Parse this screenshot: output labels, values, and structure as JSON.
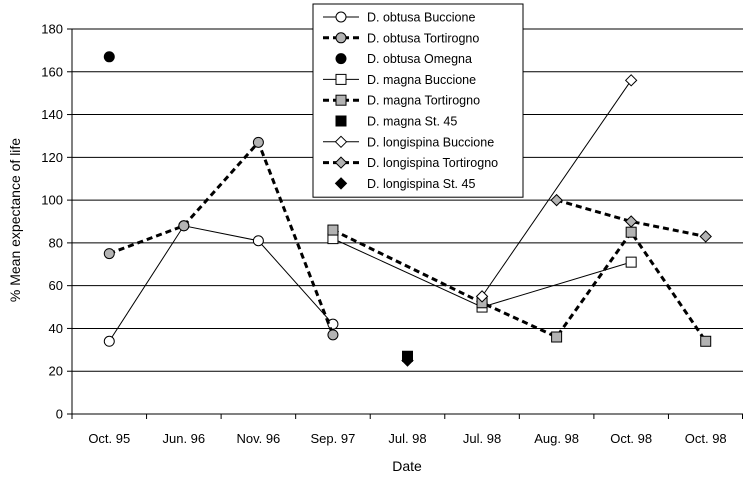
{
  "chart_data": {
    "type": "line",
    "title": "",
    "xlabel": "Date",
    "ylabel": "% Mean expectance of life",
    "ylim": [
      0,
      180
    ],
    "yticks": [
      0,
      20,
      40,
      60,
      80,
      100,
      120,
      140,
      160,
      180
    ],
    "grid": true,
    "legend_position": "top-center",
    "categories": [
      "Oct. 95",
      "Jun. 96",
      "Nov. 96",
      "Sep. 97",
      "Jul. 98",
      "Jul. 98",
      "Aug. 98",
      "Oct. 98",
      "Oct. 98"
    ],
    "series": [
      {
        "name": "D. obtusa Buccione",
        "line": "solid",
        "marker": "circle",
        "fill": "#ffffff",
        "points": [
          [
            0,
            34
          ],
          [
            1,
            88
          ],
          [
            2,
            81
          ],
          [
            3,
            42
          ]
        ]
      },
      {
        "name": "D. obtusa Tortirogno",
        "line": "dashed",
        "marker": "circle",
        "fill": "#b3b3b3",
        "points": [
          [
            0,
            75
          ],
          [
            1,
            88
          ],
          [
            2,
            127
          ],
          [
            3,
            37
          ]
        ]
      },
      {
        "name": "D. obtusa Omegna",
        "line": "none",
        "marker": "circle",
        "fill": "#000000",
        "points": [
          [
            0,
            167
          ]
        ]
      },
      {
        "name": "D. magna Buccione",
        "line": "solid",
        "marker": "square",
        "fill": "#ffffff",
        "points": [
          [
            3,
            82
          ],
          [
            5,
            50
          ],
          [
            7,
            71
          ]
        ]
      },
      {
        "name": "D. magna Tortirogno",
        "line": "dashed",
        "marker": "square",
        "fill": "#b3b3b3",
        "points": [
          [
            3,
            86
          ],
          [
            5,
            52
          ],
          [
            6,
            36
          ],
          [
            7,
            85
          ],
          [
            8,
            34
          ]
        ]
      },
      {
        "name": "D. magna St. 45",
        "line": "none",
        "marker": "square",
        "fill": "#000000",
        "points": [
          [
            4,
            27
          ]
        ]
      },
      {
        "name": "D. longispina Buccione",
        "line": "solid",
        "marker": "diamond",
        "fill": "#ffffff",
        "points": [
          [
            5,
            55
          ],
          [
            7,
            156
          ]
        ]
      },
      {
        "name": "D. longispina Tortirogno",
        "line": "dashed",
        "marker": "diamond",
        "fill": "#b3b3b3",
        "points": [
          [
            6,
            100
          ],
          [
            7,
            90
          ],
          [
            8,
            83
          ]
        ]
      },
      {
        "name": "D. longispina St. 45",
        "line": "none",
        "marker": "diamond",
        "fill": "#000000",
        "points": [
          [
            4,
            25
          ]
        ]
      }
    ]
  }
}
